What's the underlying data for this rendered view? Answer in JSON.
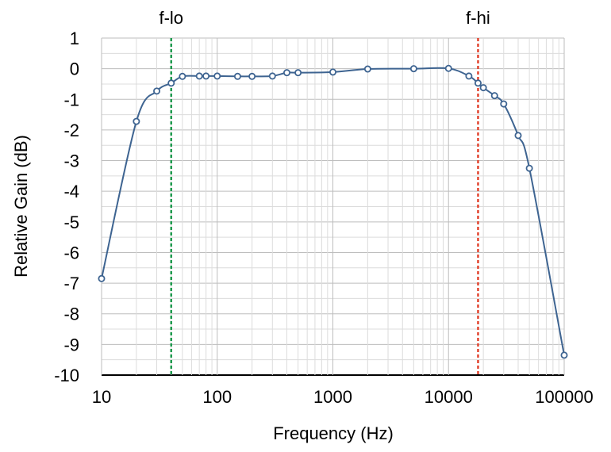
{
  "chart_data": {
    "type": "line",
    "xscale": "log",
    "xlim": [
      10,
      100000
    ],
    "ylim": [
      -10,
      1
    ],
    "xlabel": "Frequency (Hz)",
    "ylabel": "Relative Gain (dB)",
    "x_ticks": [
      "10",
      "100",
      "1000",
      "10000",
      "100000"
    ],
    "y_ticks": [
      "1",
      "0",
      "-1",
      "-2",
      "-3",
      "-4",
      "-5",
      "-6",
      "-7",
      "-8",
      "-9",
      "-10"
    ],
    "grid": true,
    "series": [
      {
        "color": "#3e6491",
        "points": [
          [
            10,
            -6.85
          ],
          [
            20,
            -1.72
          ],
          [
            30,
            -0.73
          ],
          [
            40,
            -0.47
          ],
          [
            50,
            -0.25
          ],
          [
            70,
            -0.24
          ],
          [
            80,
            -0.24
          ],
          [
            100,
            -0.24
          ],
          [
            150,
            -0.25
          ],
          [
            200,
            -0.25
          ],
          [
            300,
            -0.24
          ],
          [
            400,
            -0.13
          ],
          [
            500,
            -0.13
          ],
          [
            1000,
            -0.11
          ],
          [
            2000,
            -0.01
          ],
          [
            5000,
            0.0
          ],
          [
            10000,
            0.01
          ],
          [
            15000,
            -0.24
          ],
          [
            18000,
            -0.47
          ],
          [
            20000,
            -0.62
          ],
          [
            25000,
            -0.88
          ],
          [
            30000,
            -1.15
          ],
          [
            40000,
            -2.18
          ],
          [
            50000,
            -3.25
          ],
          [
            100000,
            -9.35
          ]
        ]
      }
    ],
    "markers": [
      {
        "label": "f-lo",
        "x": 40,
        "color": "#1e9a4e"
      },
      {
        "label": "f-hi",
        "x": 18000,
        "color": "#e2442f"
      }
    ]
  }
}
